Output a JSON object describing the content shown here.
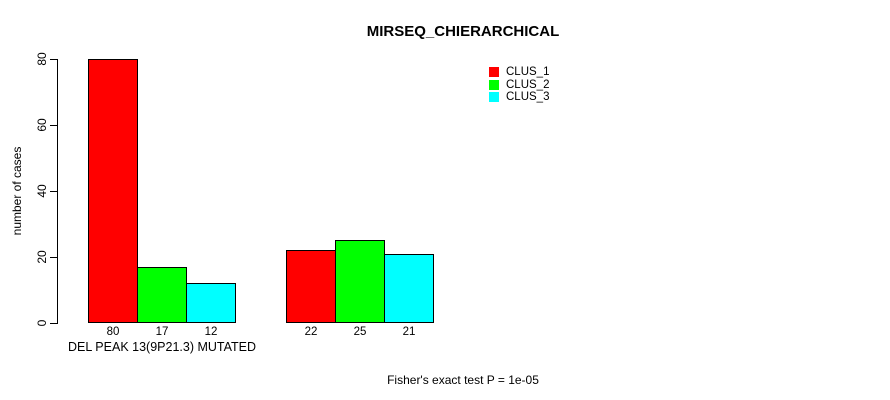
{
  "chart_data": {
    "type": "bar",
    "title": "MIRSEQ_CHIERARCHICAL",
    "ylabel": "number of cases",
    "xlabel": "",
    "ylim": [
      0,
      80
    ],
    "yticks": [
      0,
      20,
      40,
      60,
      80
    ],
    "grid": false,
    "bar_value_labels_shown": true,
    "legend_position": "top-right-inside",
    "series": [
      {
        "name": "CLUS_1",
        "color": "#FF0000"
      },
      {
        "name": "CLUS_2",
        "color": "#00FF00"
      },
      {
        "name": "CLUS_3",
        "color": "#00FFFF"
      }
    ],
    "groups": [
      {
        "label": "DEL PEAK 13(9P21.3) MUTATED",
        "values": [
          80,
          17,
          12
        ]
      },
      {
        "label": "",
        "values": [
          22,
          25,
          21
        ]
      }
    ],
    "annotation": "Fisher's exact test P = 1e-05"
  }
}
